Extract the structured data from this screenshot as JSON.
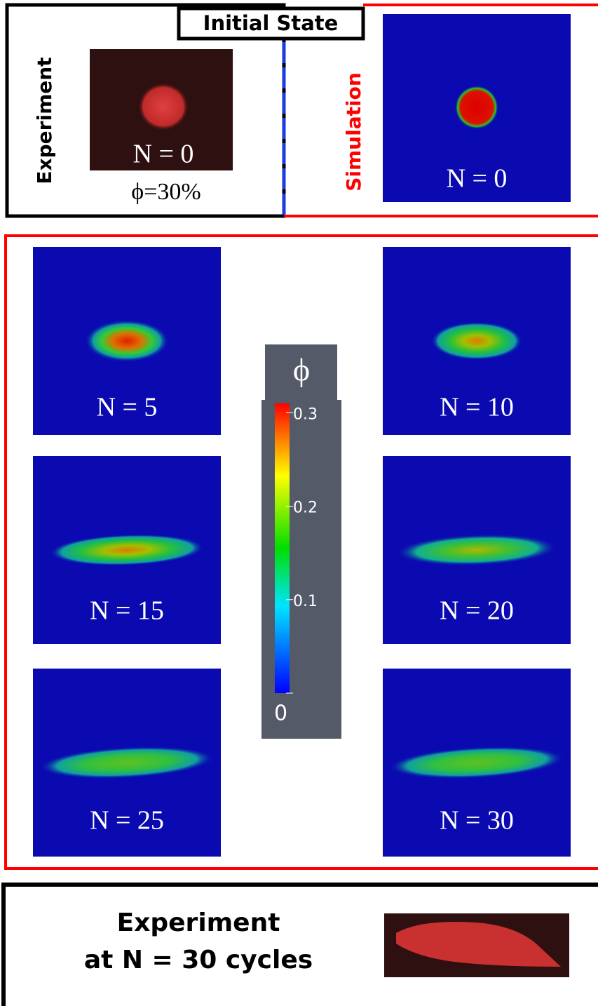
{
  "initial_state": {
    "title": "Initial State",
    "experiment": {
      "label": "Experiment",
      "image_label": "N = 0",
      "phi_label": "ϕ=30%"
    },
    "simulation": {
      "label": "Simulation",
      "image_label": "N = 0"
    }
  },
  "simulation_panels": [
    {
      "label": "N = 5"
    },
    {
      "label": "N = 10"
    },
    {
      "label": "N = 15"
    },
    {
      "label": "N = 20"
    },
    {
      "label": "N = 25"
    },
    {
      "label": "N = 30"
    }
  ],
  "colorbar": {
    "symbol": "ϕ",
    "lim": [
      0,
      0.31
    ],
    "ticks": [
      0,
      0.1,
      0.2,
      0.3
    ]
  },
  "final": {
    "line1": "Experiment",
    "line2": "at N = 30 cycles"
  }
}
